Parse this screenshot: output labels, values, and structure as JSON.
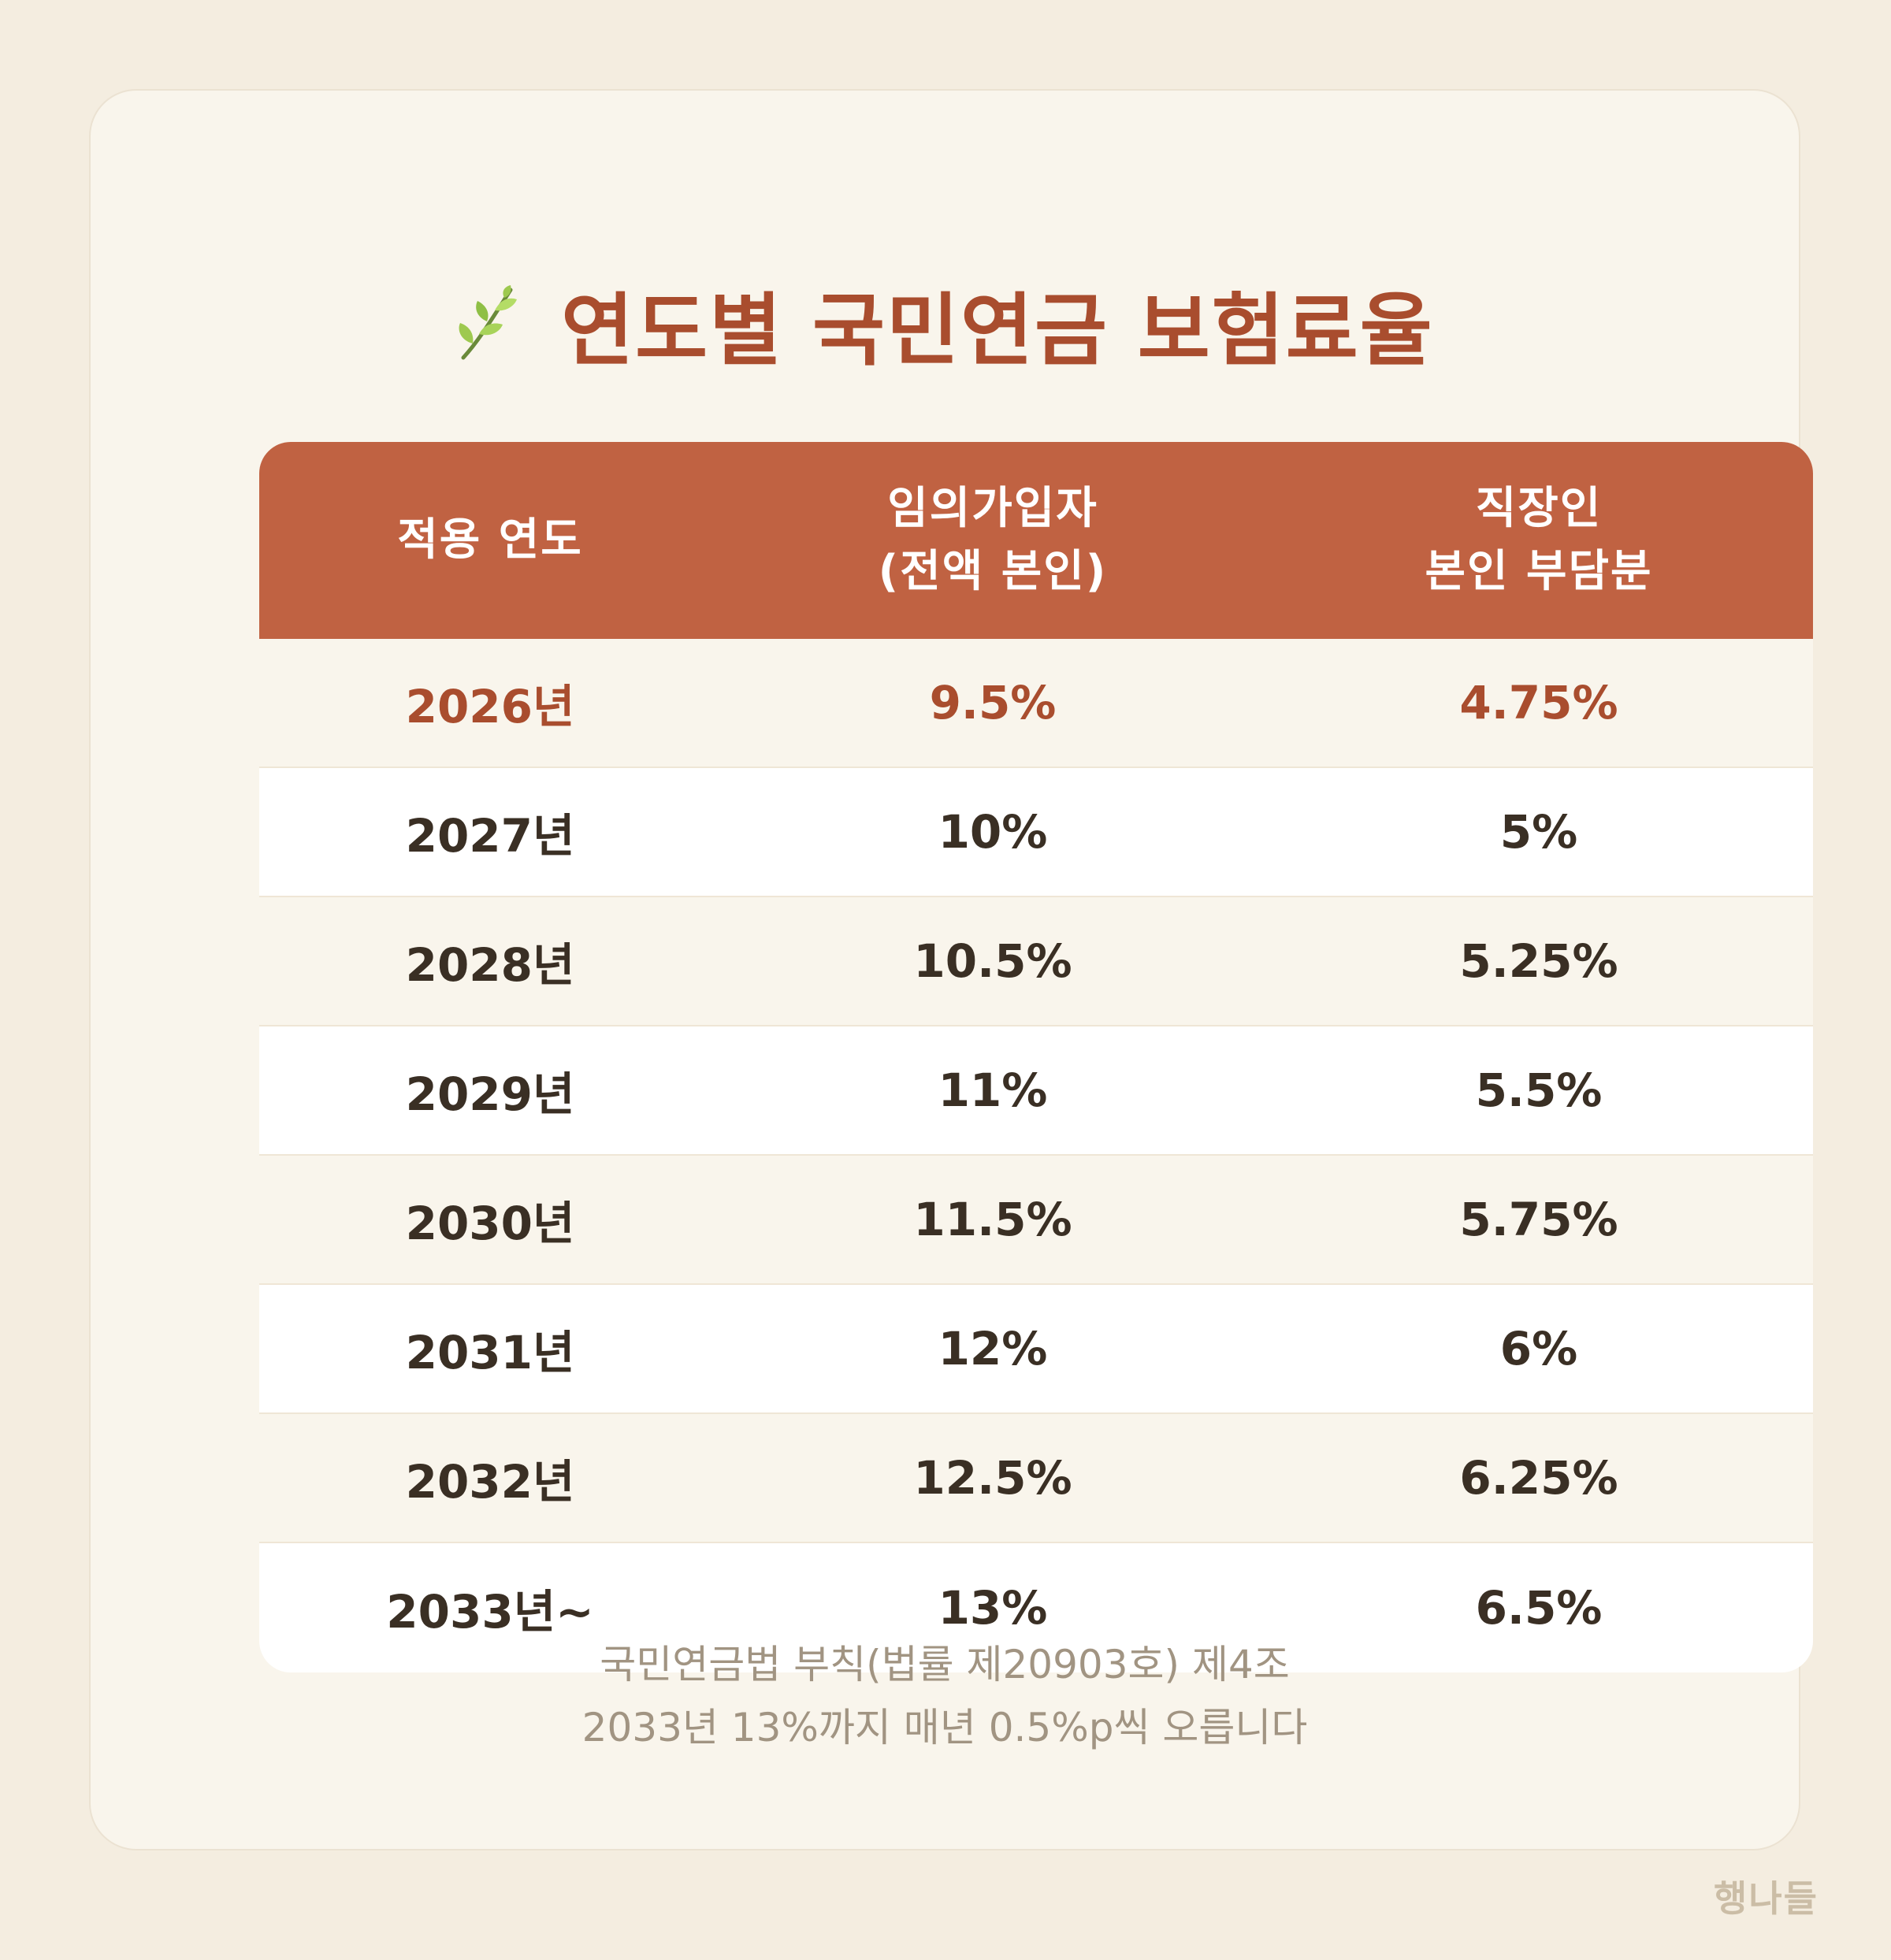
{
  "title": "연도별 국민연금 보험료율",
  "title_icon": "sprout-icon",
  "colors": {
    "accent": "#a94d2e",
    "header_bg": "#c06242",
    "background": "#f4ede0",
    "card": "#f9f5ec"
  },
  "table": {
    "headers": [
      {
        "line1": "적용 연도",
        "line2": ""
      },
      {
        "line1": "임의가입자",
        "line2": "(전액 본인)"
      },
      {
        "line1": "직장인",
        "line2": "본인 부담분"
      }
    ],
    "rows": [
      {
        "year": "2026년",
        "voluntary": "9.5%",
        "employee": "4.75%"
      },
      {
        "year": "2027년",
        "voluntary": "10%",
        "employee": "5%"
      },
      {
        "year": "2028년",
        "voluntary": "10.5%",
        "employee": "5.25%"
      },
      {
        "year": "2029년",
        "voluntary": "11%",
        "employee": "5.5%"
      },
      {
        "year": "2030년",
        "voluntary": "11.5%",
        "employee": "5.75%"
      },
      {
        "year": "2031년",
        "voluntary": "12%",
        "employee": "6%"
      },
      {
        "year": "2032년",
        "voluntary": "12.5%",
        "employee": "6.25%"
      },
      {
        "year": "2033년~",
        "voluntary": "13%",
        "employee": "6.5%"
      }
    ]
  },
  "footnote": {
    "line1": "국민연금법 부칙(법률 제20903호) 제4조",
    "line2": "2033년 13%까지 매년 0.5%p씩 오릅니다"
  },
  "brand": "행나들"
}
